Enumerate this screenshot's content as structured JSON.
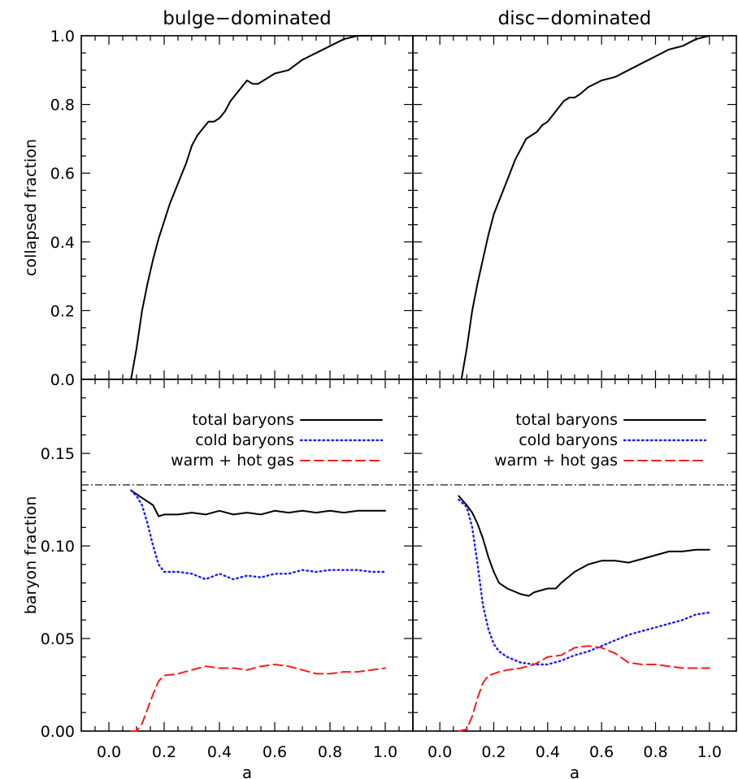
{
  "chart_data": [
    {
      "type": "line",
      "panel": "top-left",
      "title": "bulge−dominated",
      "xlabel": "",
      "ylabel": "collapsed fraction",
      "xlim": [
        -0.1,
        1.1
      ],
      "ylim": [
        0.0,
        1.0
      ],
      "yticks": [
        "0.0",
        "0.2",
        "0.4",
        "0.6",
        "0.8",
        "1.0"
      ],
      "series": [
        {
          "color": "#000000",
          "dash": "solid",
          "x": [
            0.08,
            0.1,
            0.12,
            0.14,
            0.16,
            0.18,
            0.2,
            0.22,
            0.24,
            0.26,
            0.28,
            0.3,
            0.32,
            0.34,
            0.36,
            0.38,
            0.4,
            0.42,
            0.44,
            0.46,
            0.48,
            0.5,
            0.52,
            0.54,
            0.56,
            0.58,
            0.6,
            0.65,
            0.7,
            0.75,
            0.8,
            0.85,
            0.9,
            0.95,
            1.0
          ],
          "y": [
            0.0,
            0.09,
            0.2,
            0.28,
            0.35,
            0.41,
            0.46,
            0.51,
            0.55,
            0.59,
            0.63,
            0.68,
            0.71,
            0.73,
            0.75,
            0.75,
            0.76,
            0.78,
            0.81,
            0.83,
            0.85,
            0.87,
            0.86,
            0.86,
            0.87,
            0.88,
            0.89,
            0.9,
            0.93,
            0.95,
            0.97,
            0.99,
            1.0,
            1.0,
            1.0
          ]
        }
      ]
    },
    {
      "type": "line",
      "panel": "top-right",
      "title": "disc−dominated",
      "xlabel": "",
      "ylabel": "",
      "xlim": [
        -0.1,
        1.1
      ],
      "ylim": [
        0.0,
        1.0
      ],
      "series": [
        {
          "color": "#000000",
          "dash": "solid",
          "x": [
            0.08,
            0.1,
            0.12,
            0.14,
            0.16,
            0.18,
            0.2,
            0.22,
            0.24,
            0.26,
            0.28,
            0.3,
            0.32,
            0.34,
            0.36,
            0.38,
            0.4,
            0.42,
            0.44,
            0.46,
            0.48,
            0.5,
            0.52,
            0.55,
            0.6,
            0.65,
            0.7,
            0.75,
            0.8,
            0.85,
            0.9,
            0.95,
            1.0
          ],
          "y": [
            0.0,
            0.09,
            0.2,
            0.28,
            0.35,
            0.42,
            0.48,
            0.52,
            0.56,
            0.6,
            0.64,
            0.67,
            0.7,
            0.71,
            0.72,
            0.74,
            0.75,
            0.77,
            0.79,
            0.81,
            0.82,
            0.82,
            0.83,
            0.85,
            0.87,
            0.88,
            0.9,
            0.92,
            0.94,
            0.96,
            0.97,
            0.99,
            1.0
          ]
        }
      ]
    },
    {
      "type": "line",
      "panel": "bottom-left",
      "xlabel": "a",
      "ylabel": "baryon fraction",
      "xlim": [
        -0.1,
        1.1
      ],
      "ylim": [
        0.0,
        0.19
      ],
      "xticks": [
        "0.0",
        "0.2",
        "0.4",
        "0.6",
        "0.8",
        "1.0"
      ],
      "yticks": [
        "0.00",
        "0.05",
        "0.10",
        "0.15"
      ],
      "reference_line": {
        "y": 0.133,
        "style": "dash-dot",
        "color": "#000000"
      },
      "legend": {
        "placement": "top-right"
      },
      "series": [
        {
          "name": "total baryons",
          "color": "#000000",
          "dash": "solid",
          "x": [
            0.08,
            0.1,
            0.12,
            0.14,
            0.16,
            0.18,
            0.2,
            0.25,
            0.3,
            0.35,
            0.4,
            0.45,
            0.5,
            0.55,
            0.6,
            0.65,
            0.7,
            0.75,
            0.8,
            0.85,
            0.9,
            0.95,
            1.0
          ],
          "y": [
            0.13,
            0.128,
            0.126,
            0.124,
            0.122,
            0.116,
            0.117,
            0.117,
            0.118,
            0.117,
            0.119,
            0.117,
            0.118,
            0.117,
            0.119,
            0.118,
            0.119,
            0.118,
            0.119,
            0.118,
            0.119,
            0.119,
            0.119
          ]
        },
        {
          "name": "cold baryons",
          "color": "#1a1aff",
          "dash": "dotted",
          "x": [
            0.08,
            0.1,
            0.12,
            0.14,
            0.16,
            0.18,
            0.2,
            0.25,
            0.3,
            0.35,
            0.4,
            0.45,
            0.5,
            0.55,
            0.6,
            0.65,
            0.7,
            0.75,
            0.8,
            0.85,
            0.9,
            0.95,
            1.0
          ],
          "y": [
            0.13,
            0.127,
            0.122,
            0.112,
            0.1,
            0.09,
            0.086,
            0.086,
            0.085,
            0.082,
            0.085,
            0.082,
            0.084,
            0.083,
            0.085,
            0.085,
            0.087,
            0.086,
            0.087,
            0.087,
            0.087,
            0.086,
            0.086
          ]
        },
        {
          "name": "warm + hot gas",
          "color": "#ff1a1a",
          "dash": "dashed",
          "x": [
            0.08,
            0.1,
            0.12,
            0.14,
            0.16,
            0.18,
            0.2,
            0.25,
            0.3,
            0.35,
            0.4,
            0.45,
            0.5,
            0.55,
            0.6,
            0.65,
            0.7,
            0.75,
            0.8,
            0.85,
            0.9,
            0.95,
            1.0
          ],
          "y": [
            0.0,
            0.0,
            0.004,
            0.012,
            0.02,
            0.027,
            0.03,
            0.031,
            0.033,
            0.035,
            0.034,
            0.034,
            0.033,
            0.035,
            0.036,
            0.035,
            0.033,
            0.031,
            0.031,
            0.032,
            0.032,
            0.033,
            0.034
          ]
        }
      ]
    },
    {
      "type": "line",
      "panel": "bottom-right",
      "xlabel": "a",
      "ylabel": "",
      "xlim": [
        -0.1,
        1.1
      ],
      "ylim": [
        0.0,
        0.19
      ],
      "xticks": [
        "0.0",
        "0.2",
        "0.4",
        "0.6",
        "0.8",
        "1.0"
      ],
      "reference_line": {
        "y": 0.133,
        "style": "dash-dot",
        "color": "#000000"
      },
      "legend": {
        "placement": "top-right"
      },
      "series": [
        {
          "name": "total baryons",
          "color": "#000000",
          "dash": "solid",
          "x": [
            0.07,
            0.1,
            0.12,
            0.14,
            0.16,
            0.18,
            0.2,
            0.22,
            0.25,
            0.3,
            0.33,
            0.35,
            0.4,
            0.43,
            0.45,
            0.5,
            0.55,
            0.6,
            0.65,
            0.7,
            0.75,
            0.8,
            0.85,
            0.9,
            0.95,
            1.0
          ],
          "y": [
            0.127,
            0.122,
            0.118,
            0.112,
            0.104,
            0.094,
            0.086,
            0.08,
            0.077,
            0.074,
            0.073,
            0.075,
            0.077,
            0.077,
            0.08,
            0.086,
            0.09,
            0.092,
            0.092,
            0.091,
            0.093,
            0.095,
            0.097,
            0.097,
            0.098,
            0.098
          ]
        },
        {
          "name": "cold baryons",
          "color": "#1a1aff",
          "dash": "dotted",
          "x": [
            0.07,
            0.1,
            0.12,
            0.14,
            0.16,
            0.18,
            0.2,
            0.22,
            0.25,
            0.3,
            0.35,
            0.4,
            0.45,
            0.5,
            0.55,
            0.6,
            0.65,
            0.7,
            0.75,
            0.8,
            0.85,
            0.9,
            0.95,
            1.0
          ],
          "y": [
            0.125,
            0.121,
            0.11,
            0.09,
            0.068,
            0.055,
            0.047,
            0.043,
            0.04,
            0.037,
            0.036,
            0.036,
            0.038,
            0.041,
            0.043,
            0.046,
            0.049,
            0.052,
            0.054,
            0.056,
            0.058,
            0.06,
            0.063,
            0.064
          ]
        },
        {
          "name": "warm + hot gas",
          "color": "#ff1a1a",
          "dash": "dashed",
          "x": [
            0.07,
            0.1,
            0.12,
            0.14,
            0.16,
            0.18,
            0.2,
            0.22,
            0.25,
            0.3,
            0.35,
            0.4,
            0.45,
            0.5,
            0.55,
            0.6,
            0.65,
            0.7,
            0.75,
            0.8,
            0.85,
            0.9,
            0.95,
            1.0
          ],
          "y": [
            0.0,
            0.001,
            0.008,
            0.018,
            0.026,
            0.03,
            0.031,
            0.032,
            0.033,
            0.034,
            0.036,
            0.04,
            0.041,
            0.045,
            0.046,
            0.045,
            0.042,
            0.037,
            0.036,
            0.036,
            0.035,
            0.034,
            0.034,
            0.034
          ]
        }
      ]
    }
  ]
}
